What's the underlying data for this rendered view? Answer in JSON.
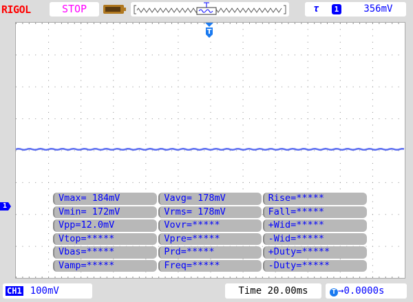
{
  "header": {
    "logo": "RIGOL",
    "status": "STOP",
    "trigger": {
      "slope_icon": "rising-edge-icon",
      "source": "1",
      "level": "356mV"
    },
    "trigger_marker": "T"
  },
  "colors": {
    "trace": "#5a6cf0",
    "text": "#0000ff",
    "logo": "#ff0000",
    "status": "#ff00ff"
  },
  "channel_marker": "1",
  "measurements": [
    [
      "Vmax= 184mV",
      "Vavg= 178mV",
      "Rise=*****"
    ],
    [
      "Vmin= 172mV",
      "Vrms= 178mV",
      "Fall=*****"
    ],
    [
      "Vpp=12.0mV",
      "Vovr=*****",
      "+Wid=*****"
    ],
    [
      "Vtop=*****",
      "Vpre=*****",
      "-Wid=*****"
    ],
    [
      "Vbas=*****",
      "Prd=*****",
      "+Duty=*****"
    ],
    [
      "Vamp=*****",
      "Freq=*****",
      "-Duty=*****"
    ]
  ],
  "footer": {
    "channel": "CH1",
    "scale": "100mV",
    "time": "Time 20.00ms",
    "offset": "0.0000s"
  }
}
